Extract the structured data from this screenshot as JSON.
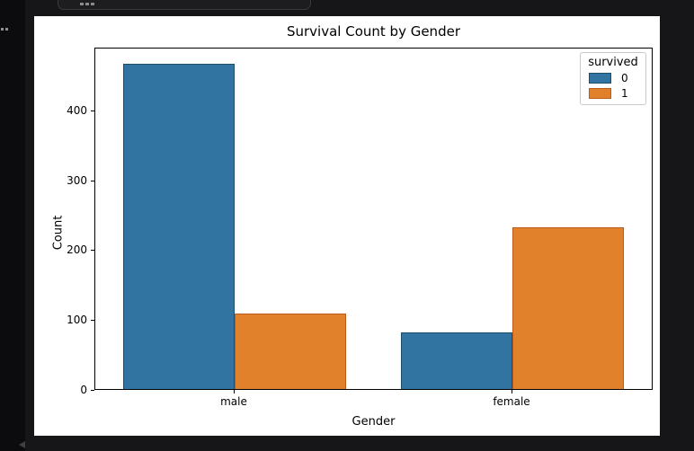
{
  "chart_data": {
    "type": "bar",
    "title": "Survival Count by Gender",
    "xlabel": "Gender",
    "ylabel": "Count",
    "categories": [
      "male",
      "female"
    ],
    "series": [
      {
        "name": "0",
        "color": "#3274a1",
        "edge_color": "#1c4e6e",
        "values": [
          468,
          81
        ]
      },
      {
        "name": "1",
        "color": "#e1812c",
        "edge_color": "#bc5a17",
        "values": [
          109,
          233
        ]
      }
    ],
    "legend": {
      "title": "survived",
      "position": "upper-right"
    },
    "yticks": [
      0,
      100,
      200,
      300,
      400
    ],
    "ylim": [
      0,
      490
    ],
    "grid": false,
    "plot_background": "#ffffff"
  }
}
